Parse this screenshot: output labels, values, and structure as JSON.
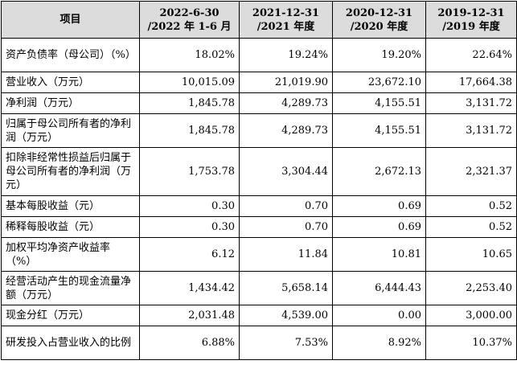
{
  "header": {
    "item": "项目",
    "cols": [
      {
        "line1": "2022-6-30",
        "line2": "/2022 年 1-6 月"
      },
      {
        "line1": "2021-12-31",
        "line2": "/2021 年度"
      },
      {
        "line1": "2020-12-31",
        "line2": "/2020 年度"
      },
      {
        "line1": "2019-12-31",
        "line2": "/2019 年度"
      }
    ]
  },
  "rows": [
    {
      "label": "资产负债率（母公司）（%）",
      "values": [
        "18.02%",
        "19.24%",
        "19.20%",
        "22.64%"
      ]
    },
    {
      "label": "营业收入（万元）",
      "values": [
        "10,015.09",
        "21,019.90",
        "23,672.10",
        "17,664.38"
      ]
    },
    {
      "label": "净利润（万元）",
      "values": [
        "1,845.78",
        "4,289.73",
        "4,155.51",
        "3,131.72"
      ]
    },
    {
      "label": "归属于母公司所有者的净利润（万元）",
      "values": [
        "1,845.78",
        "4,289.73",
        "4,155.51",
        "3,131.72"
      ]
    },
    {
      "label": "扣除非经常性损益后归属于母公司所有者的净利润（万元）",
      "values": [
        "1,753.78",
        "3,304.44",
        "2,672.13",
        "2,321.37"
      ]
    },
    {
      "label": "基本每股收益（元）",
      "values": [
        "0.30",
        "0.70",
        "0.69",
        "0.52"
      ]
    },
    {
      "label": "稀释每股收益（元）",
      "values": [
        "0.30",
        "0.70",
        "0.69",
        "0.52"
      ]
    },
    {
      "label": "加权平均净资产收益率（%）",
      "values": [
        "6.12",
        "11.84",
        "10.81",
        "10.65"
      ]
    },
    {
      "label": "经营活动产生的现金流量净额（万元）",
      "values": [
        "1,434.42",
        "5,658.14",
        "6,444.43",
        "2,253.40"
      ]
    },
    {
      "label": "现金分红（万元）",
      "values": [
        "2,031.48",
        "4,539.00",
        "0.00",
        "3,000.00"
      ]
    },
    {
      "label": "研发投入占营业收入的比例",
      "values": [
        "6.88%",
        "7.53%",
        "8.92%",
        "10.37%"
      ]
    }
  ]
}
